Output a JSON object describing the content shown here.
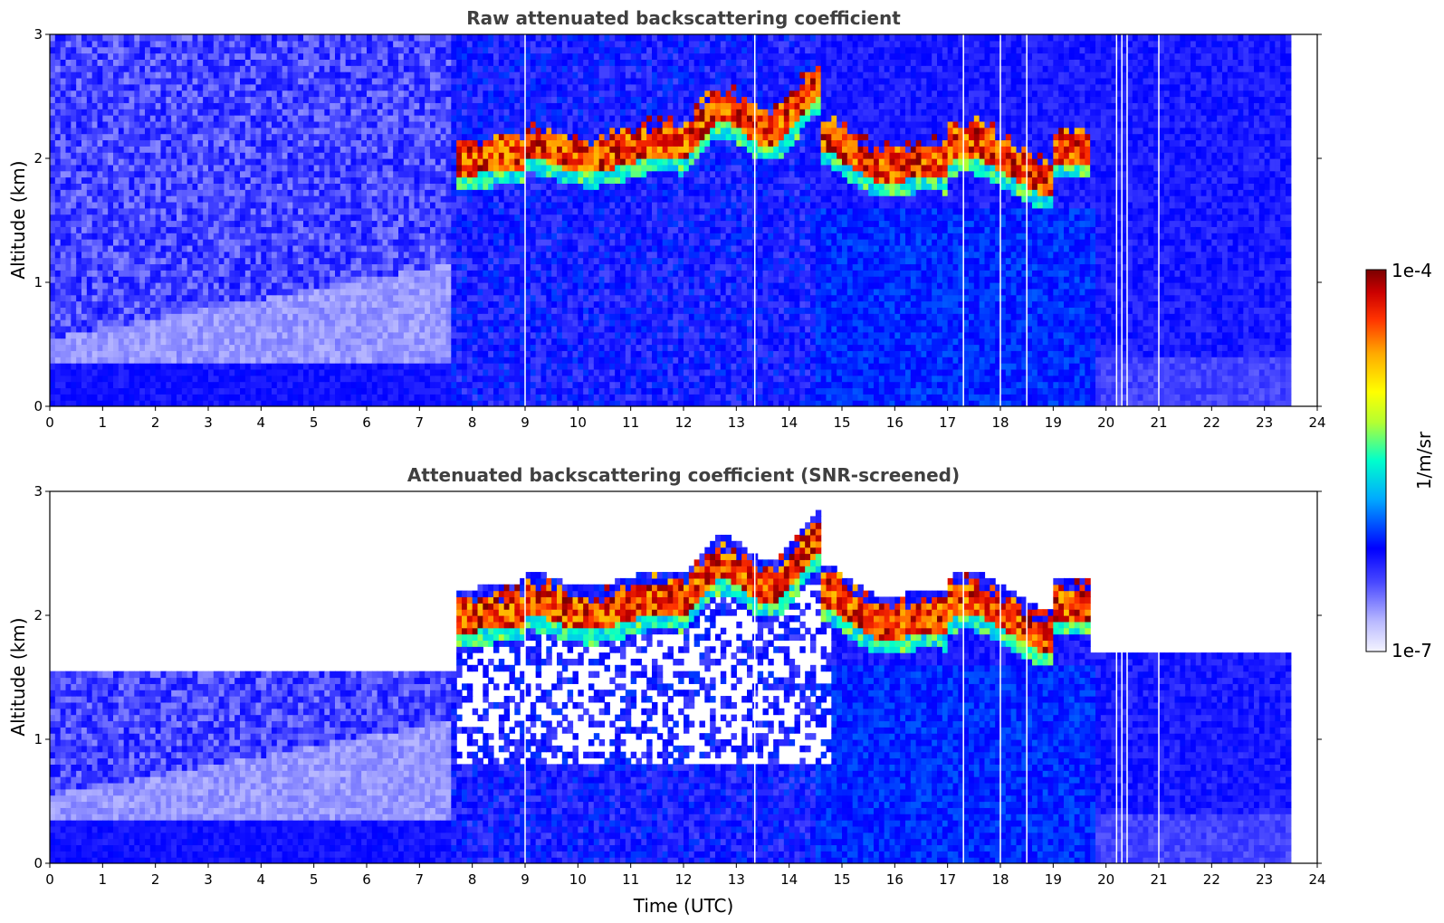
{
  "chart_data": [
    {
      "type": "heatmap",
      "title": "Raw attenuated backscattering coefficient",
      "xlabel": "",
      "ylabel": "Altitude (km)",
      "xlim": [
        0,
        24
      ],
      "ylim": [
        0,
        3
      ],
      "x_ticks": [
        "0",
        "1",
        "2",
        "3",
        "4",
        "5",
        "6",
        "7",
        "8",
        "9",
        "10",
        "11",
        "12",
        "13",
        "14",
        "15",
        "16",
        "17",
        "18",
        "19",
        "20",
        "21",
        "22",
        "23",
        "24"
      ],
      "y_ticks": [
        "0",
        "1",
        "2",
        "3"
      ],
      "data_end_hour": 23.5,
      "cloud_layer_km": [
        1.7,
        2.6
      ],
      "cloud_time_utc": [
        7.7,
        19.7
      ]
    },
    {
      "type": "heatmap",
      "title": "Attenuated backscattering coefficient (SNR-screened)",
      "xlabel": "Time (UTC)",
      "ylabel": "Altitude (km)",
      "xlim": [
        0,
        24
      ],
      "ylim": [
        0,
        3
      ],
      "x_ticks": [
        "0",
        "1",
        "2",
        "3",
        "4",
        "5",
        "6",
        "7",
        "8",
        "9",
        "10",
        "11",
        "12",
        "13",
        "14",
        "15",
        "16",
        "17",
        "18",
        "19",
        "20",
        "21",
        "22",
        "23",
        "24"
      ],
      "y_ticks": [
        "0",
        "1",
        "2",
        "3"
      ],
      "data_end_hour": 23.5,
      "cloud_layer_km": [
        1.7,
        2.8
      ],
      "cloud_time_utc": [
        7.7,
        19.7
      ]
    }
  ],
  "colorbar": {
    "label": "1/m/sr",
    "max_label": "1e-4",
    "min_label": "1e-7",
    "scale": "log",
    "colors": [
      "#f4f4ff",
      "#b8b8ff",
      "#4a4aff",
      "#0000ff",
      "#00aaff",
      "#00ffcc",
      "#b4ff32",
      "#ffff00",
      "#ffaa00",
      "#ff3300",
      "#cc0000",
      "#7a0000"
    ]
  }
}
